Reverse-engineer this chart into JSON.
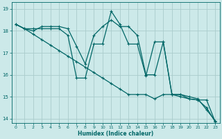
{
  "xlabel": "Humidex (Indice chaleur)",
  "bg_color": "#cce9e9",
  "line_color": "#006666",
  "grid_color": "#b0d8d8",
  "xlim": [
    -0.5,
    23.5
  ],
  "ylim": [
    13.8,
    19.3
  ],
  "yticks": [
    14,
    15,
    16,
    17,
    18,
    19
  ],
  "xticks": [
    0,
    1,
    2,
    3,
    4,
    5,
    6,
    7,
    8,
    9,
    10,
    11,
    12,
    13,
    14,
    15,
    16,
    17,
    18,
    19,
    20,
    21,
    22,
    23
  ],
  "line1_x": [
    0,
    1,
    2,
    3,
    4,
    5,
    6,
    7,
    8,
    9,
    10,
    11,
    12,
    13,
    14,
    15,
    16,
    17,
    18,
    19,
    20,
    21,
    22,
    23
  ],
  "line1_y": [
    18.3,
    18.1,
    18.1,
    18.1,
    18.1,
    18.1,
    17.8,
    15.85,
    15.85,
    17.4,
    17.4,
    18.9,
    18.3,
    17.4,
    17.4,
    15.95,
    17.5,
    17.5,
    15.1,
    15.1,
    15.0,
    14.9,
    14.4,
    13.9
  ],
  "line2_x": [
    0,
    1,
    2,
    3,
    4,
    5,
    6,
    7,
    8,
    9,
    10,
    11,
    12,
    13,
    14,
    15,
    16,
    17,
    18,
    19,
    20,
    21,
    22,
    23
  ],
  "line2_y": [
    18.3,
    18.1,
    18.0,
    18.2,
    18.2,
    18.2,
    18.1,
    17.3,
    16.5,
    17.8,
    18.2,
    18.5,
    18.2,
    18.2,
    17.8,
    16.0,
    16.0,
    17.5,
    15.1,
    15.1,
    14.9,
    14.85,
    14.85,
    13.85
  ],
  "line3_x": [
    0,
    1,
    2,
    3,
    4,
    5,
    6,
    7,
    8,
    9,
    10,
    11,
    12,
    13,
    14,
    15,
    16,
    17,
    18,
    19,
    20,
    21,
    22,
    23
  ],
  "line3_y": [
    18.3,
    18.1,
    17.85,
    17.6,
    17.35,
    17.1,
    16.85,
    16.6,
    16.35,
    16.1,
    15.85,
    15.6,
    15.35,
    15.1,
    15.1,
    15.1,
    14.9,
    15.1,
    15.1,
    15.0,
    14.9,
    14.85,
    14.5,
    13.85
  ]
}
